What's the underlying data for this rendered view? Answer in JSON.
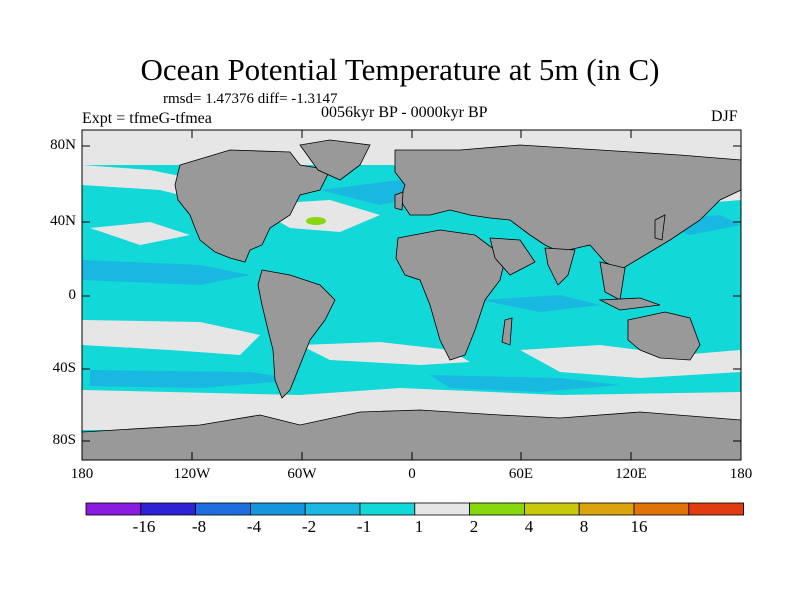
{
  "figure": {
    "title": "Ocean Potential Temperature at 5m (in C)",
    "stats": "rmsd= 1.47376 diff= -1.3147",
    "experiment": "Expt = tfmeG-tfmea",
    "period": "0056kyr BP - 0000kyr BP",
    "season": "DJF"
  },
  "axes": {
    "lat_labels": [
      "80N",
      "40N",
      "0",
      "40S",
      "80S"
    ],
    "lon_labels": [
      "180",
      "120W",
      "60W",
      "0",
      "60E",
      "120E",
      "180"
    ]
  },
  "legend": {
    "colors": [
      "#8a1be0",
      "#2e22d8",
      "#1e6ee0",
      "#1596dc",
      "#18b8e0",
      "#12d8d8",
      "#e6e6e6",
      "#86d80c",
      "#c8c80c",
      "#dca40c",
      "#e07208",
      "#e03c10"
    ],
    "labels": [
      "-16",
      "-8",
      "-4",
      "-2",
      "-1",
      "1",
      "2",
      "4",
      "8",
      "16"
    ]
  },
  "map_colors": {
    "land": "#999999",
    "ocean_main": "#12d8d8",
    "near_zero": "#e6e6e6",
    "cool": "#18b8e0",
    "warm_spot": "#86d80c"
  }
}
